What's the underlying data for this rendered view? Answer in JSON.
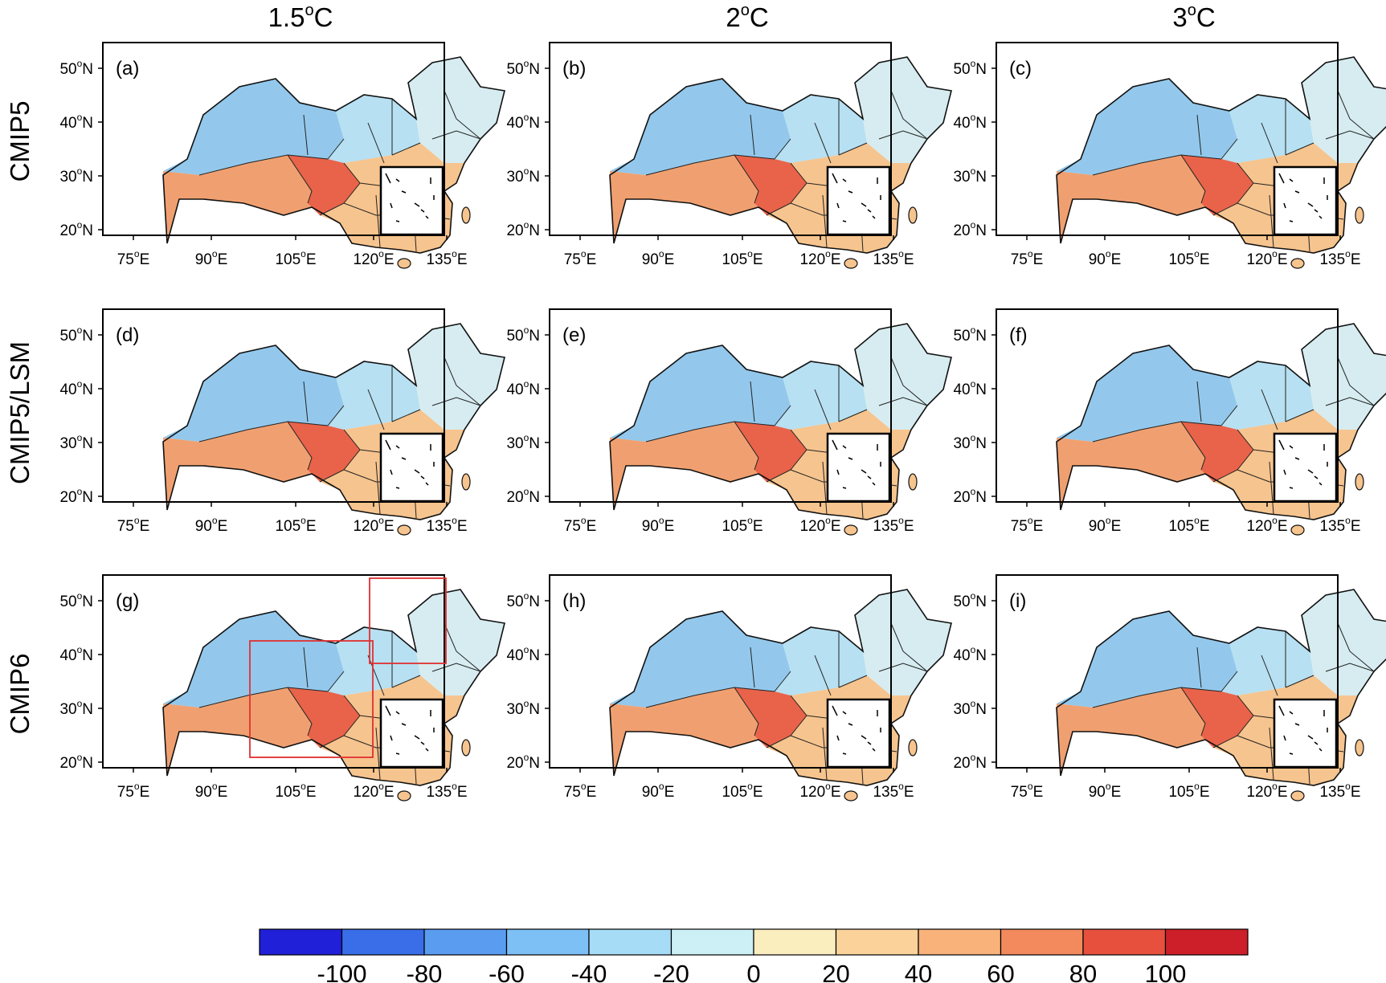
{
  "columns": [
    {
      "base": "1.5",
      "unit": "C"
    },
    {
      "base": "2",
      "unit": "C"
    },
    {
      "base": "3",
      "unit": "C"
    }
  ],
  "rows": [
    "CMIP5",
    "CMIP5/LSM",
    "CMIP6"
  ],
  "panel_labels": [
    "(a)",
    "(b)",
    "(c)",
    "(d)",
    "(e)",
    "(f)",
    "(g)",
    "(h)",
    "(i)"
  ],
  "lat_ticks": [
    {
      "num": "50",
      "hemi": "N"
    },
    {
      "num": "40",
      "hemi": "N"
    },
    {
      "num": "30",
      "hemi": "N"
    },
    {
      "num": "20",
      "hemi": "N"
    }
  ],
  "lon_ticks": [
    {
      "num": "75",
      "hemi": "E"
    },
    {
      "num": "90",
      "hemi": "E"
    },
    {
      "num": "105",
      "hemi": "E"
    },
    {
      "num": "120",
      "hemi": "E"
    },
    {
      "num": "135",
      "hemi": "E"
    }
  ],
  "degree_symbol": "o",
  "colorbar": {
    "colors": [
      "#2020d8",
      "#3a6ee8",
      "#5a9cf0",
      "#7cc0f5",
      "#a6dcf5",
      "#ccf0f5",
      "#fbeebe",
      "#fbd39a",
      "#f8b27a",
      "#f28a5e",
      "#e8503e",
      "#cc1f2a"
    ],
    "tick_labels": [
      "-100",
      "-80",
      "-60",
      "-40",
      "-20",
      "0",
      "20",
      "40",
      "60",
      "80",
      "100"
    ]
  },
  "red_boxes_panel": "(g)",
  "region_colors": {
    "northwest": "#93c8ec",
    "tibet": "#f0a070",
    "sichuan": "#e8634a",
    "north": "#b7e0f2",
    "northeast": "#d6ecf0",
    "south": "#f6c48e"
  }
}
